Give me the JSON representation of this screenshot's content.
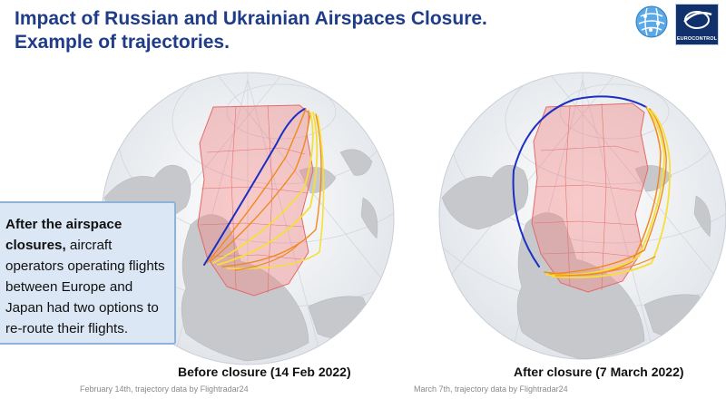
{
  "header": {
    "title_line1": "Impact of Russian and Ukrainian Airspaces Closure.",
    "title_line2": "Example of trajectories.",
    "logo_text": "EUROCONTROL"
  },
  "callout": {
    "bold_text": "After the airspace closures,",
    "text": " aircraft operators operating flights between Europe and Japan had two options to re-route their flights."
  },
  "maps": [
    {
      "caption": "Before closure (14 Feb 2022)",
      "source": "February 14th, trajectory data by Flightradar24"
    },
    {
      "caption": "After closure (7 March 2022)",
      "source": "March 7th, trajectory data by Flightradar24"
    }
  ],
  "colors": {
    "title": "#1f3c88",
    "closed_airspace": "#f08a8a",
    "route_blue": "#1b2fc4",
    "route_orange": "#f08a1c",
    "route_yellow": "#f6df38",
    "callout_bg": "#dbe7f4"
  }
}
